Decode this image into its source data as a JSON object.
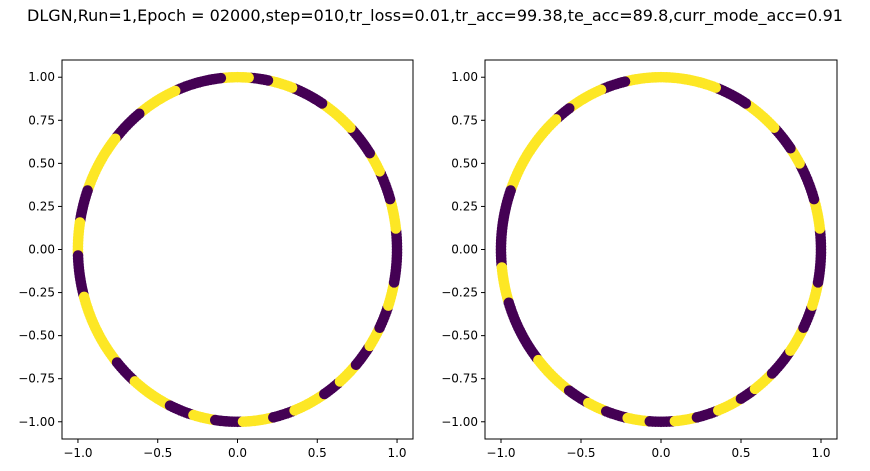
{
  "figure": {
    "title": "DLGN,Run=1,Epoch = 02000,step=010,tr_loss=0.01,tr_acc=99.38,te_acc=89.8,curr_mode_acc=0.91"
  },
  "colors": {
    "class_0": "#440154",
    "class_1": "#fde725",
    "axes": "#000000",
    "background": "#ffffff"
  },
  "chart_data": [
    {
      "type": "scatter",
      "title": "",
      "xlabel": "",
      "ylabel": "",
      "xlim": [
        -1.1,
        1.1
      ],
      "ylim": [
        -1.1,
        1.1
      ],
      "grid": false,
      "xticks": [
        -1.0,
        -0.5,
        0.0,
        0.5,
        1.0
      ],
      "xtick_labels": [
        "−1.0",
        "−0.5",
        "0.0",
        "0.5",
        "1.0"
      ],
      "yticks": [
        1.0,
        0.75,
        0.5,
        0.25,
        0.0,
        -0.25,
        -0.5,
        -0.75,
        -1.0
      ],
      "ytick_labels": [
        "1.00",
        "0.75",
        "0.50",
        "0.25",
        "0.00",
        "−0.25",
        "−0.50",
        "−0.75",
        "−1.00"
      ],
      "shape": "points on the unit circle, colored by class",
      "class_segments_deg": [
        [
          0,
          7,
          0
        ],
        [
          7,
          17,
          1
        ],
        [
          17,
          27,
          0
        ],
        [
          27,
          34,
          1
        ],
        [
          34,
          45,
          0
        ],
        [
          45,
          58,
          1
        ],
        [
          58,
          70,
          0
        ],
        [
          70,
          79,
          1
        ],
        [
          79,
          86,
          0
        ],
        [
          86,
          96,
          1
        ],
        [
          96,
          113,
          0
        ],
        [
          113,
          128,
          1
        ],
        [
          128,
          140,
          0
        ],
        [
          140,
          160,
          1
        ],
        [
          160,
          171,
          0
        ],
        [
          171,
          182,
          1
        ],
        [
          182,
          196,
          0
        ],
        [
          196,
          221,
          1
        ],
        [
          221,
          230,
          0
        ],
        [
          230,
          245,
          1
        ],
        [
          245,
          254,
          0
        ],
        [
          254,
          262,
          1
        ],
        [
          262,
          272,
          0
        ],
        [
          272,
          283,
          1
        ],
        [
          283,
          291,
          0
        ],
        [
          291,
          303,
          1
        ],
        [
          303,
          310,
          0
        ],
        [
          310,
          318,
          1
        ],
        [
          318,
          326,
          0
        ],
        [
          326,
          333,
          1
        ],
        [
          333,
          341,
          0
        ],
        [
          341,
          349,
          1
        ],
        [
          349,
          360,
          0
        ]
      ]
    },
    {
      "type": "scatter",
      "title": "",
      "xlabel": "",
      "ylabel": "",
      "xlim": [
        -1.1,
        1.1
      ],
      "ylim": [
        -1.1,
        1.1
      ],
      "grid": false,
      "xticks": [
        -1.0,
        -0.5,
        0.0,
        0.5,
        1.0
      ],
      "xtick_labels": [
        "−1.0",
        "−0.5",
        "0.0",
        "0.5",
        "1.0"
      ],
      "yticks": [
        1.0,
        0.75,
        0.5,
        0.25,
        0.0,
        -0.25,
        -0.5,
        -0.75,
        -1.0
      ],
      "ytick_labels": [
        "1.00",
        "0.75",
        "0.50",
        "0.25",
        "0.00",
        "−0.25",
        "−0.50",
        "−0.75",
        "−1.00"
      ],
      "shape": "points on the unit circle, colored by class",
      "class_segments_deg": [
        [
          0,
          7,
          0
        ],
        [
          7,
          17,
          1
        ],
        [
          17,
          30,
          0
        ],
        [
          30,
          36,
          1
        ],
        [
          36,
          45,
          0
        ],
        [
          45,
          58,
          1
        ],
        [
          58,
          70,
          0
        ],
        [
          70,
          86,
          1
        ],
        [
          86,
          96,
          1
        ],
        [
          96,
          103,
          1
        ],
        [
          103,
          112,
          0
        ],
        [
          112,
          125,
          1
        ],
        [
          125,
          131,
          0
        ],
        [
          131,
          160,
          1
        ],
        [
          160,
          186,
          0
        ],
        [
          186,
          198,
          1
        ],
        [
          198,
          220,
          0
        ],
        [
          220,
          235,
          1
        ],
        [
          235,
          243,
          0
        ],
        [
          243,
          250,
          1
        ],
        [
          250,
          258,
          0
        ],
        [
          258,
          266,
          1
        ],
        [
          266,
          275,
          0
        ],
        [
          275,
          283,
          1
        ],
        [
          283,
          291,
          0
        ],
        [
          291,
          300,
          1
        ],
        [
          300,
          306,
          0
        ],
        [
          306,
          314,
          1
        ],
        [
          314,
          324,
          0
        ],
        [
          324,
          333,
          1
        ],
        [
          333,
          341,
          0
        ],
        [
          341,
          349,
          1
        ],
        [
          349,
          360,
          0
        ]
      ]
    }
  ]
}
